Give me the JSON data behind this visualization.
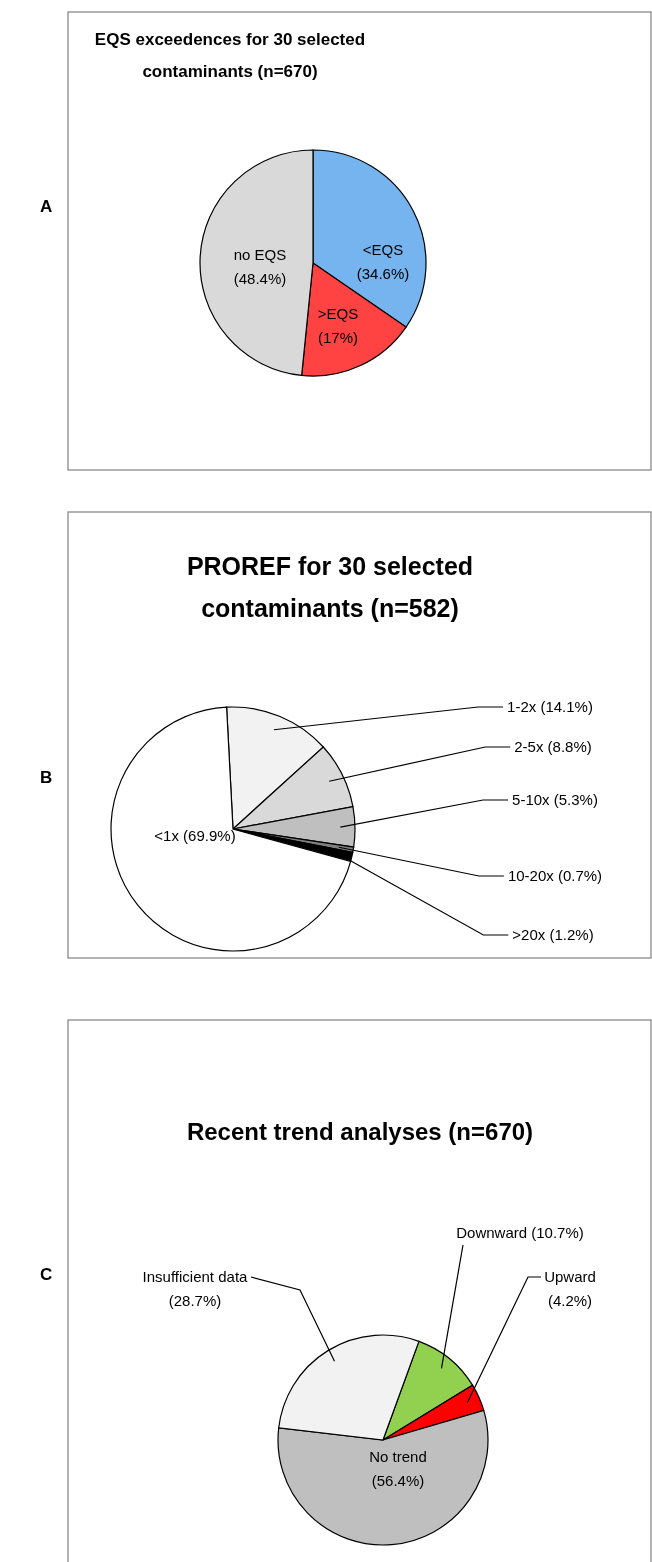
{
  "chart_data": [
    {
      "type": "pie",
      "title": "EQS exceedences for 30 selected contaminants (n=670)",
      "categories": [
        "<EQS",
        ">EQS",
        "no EQS"
      ],
      "values": [
        34.6,
        17,
        48.4
      ],
      "colors": [
        "#75b4ee",
        "#ff4343",
        "#d9d9d9"
      ],
      "value_labels": [
        "(34.6%)",
        "(17%)",
        "(48.4%)"
      ],
      "annotations": [
        "A"
      ]
    },
    {
      "type": "pie",
      "title": "PROREF for 30 selected contaminants (n=582)",
      "categories": [
        "1-2x",
        "2-5x",
        "5-10x",
        "10-20x",
        ">20x",
        "<1x"
      ],
      "values": [
        14.1,
        8.8,
        5.3,
        0.7,
        1.2,
        69.9
      ],
      "colors": [
        "#f2f2f2",
        "#d9d9d9",
        "#bfbfbf",
        "#7f7f7f",
        "#000000",
        "#ffffff"
      ],
      "value_labels": [
        "(14.1%)",
        "(8.8%)",
        "(5.3%)",
        "(0.7%)",
        "(1.2%)",
        "(69.9%)"
      ],
      "annotations": [
        "B"
      ]
    },
    {
      "type": "pie",
      "title": "Recent trend analyses  (n=670)",
      "categories": [
        "Downward",
        "Upward",
        "No trend",
        "Insufficient data"
      ],
      "values": [
        10.7,
        4.2,
        56.4,
        28.7
      ],
      "colors": [
        "#92d050",
        "#ff0000",
        "#bfbfbf",
        "#f2f2f2"
      ],
      "value_labels": [
        "(10.7%)",
        "(4.2%)",
        "(56.4%)",
        "(28.7%)"
      ],
      "annotations": [
        "C"
      ]
    }
  ]
}
